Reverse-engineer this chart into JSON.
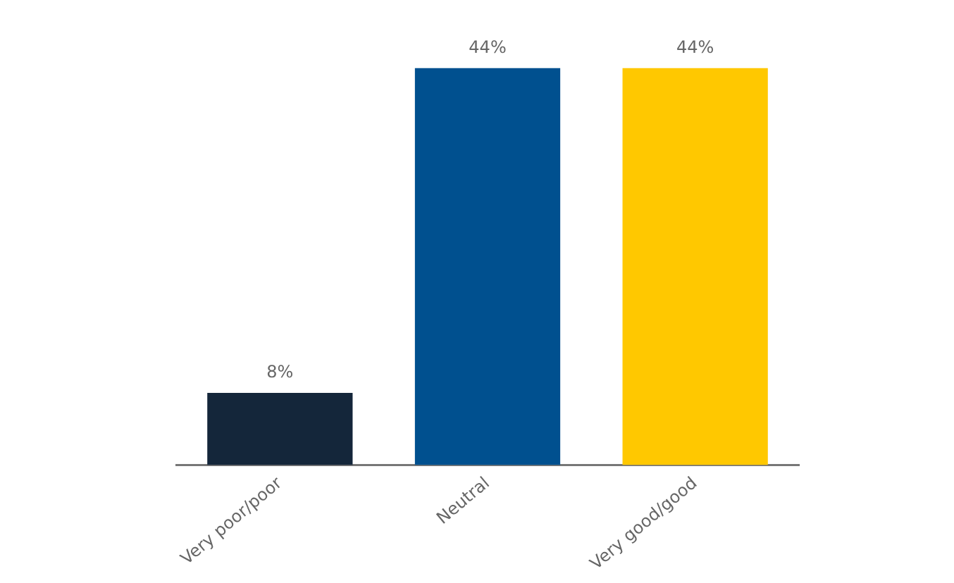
{
  "chart_data": {
    "type": "bar",
    "categories": [
      "Very poor/poor",
      "Neutral",
      "Very good/good"
    ],
    "values": [
      8,
      44,
      44
    ],
    "colors": [
      "#14263a",
      "#00508f",
      "#ffc800"
    ],
    "value_labels": [
      "8%",
      "44%",
      "44%"
    ]
  }
}
